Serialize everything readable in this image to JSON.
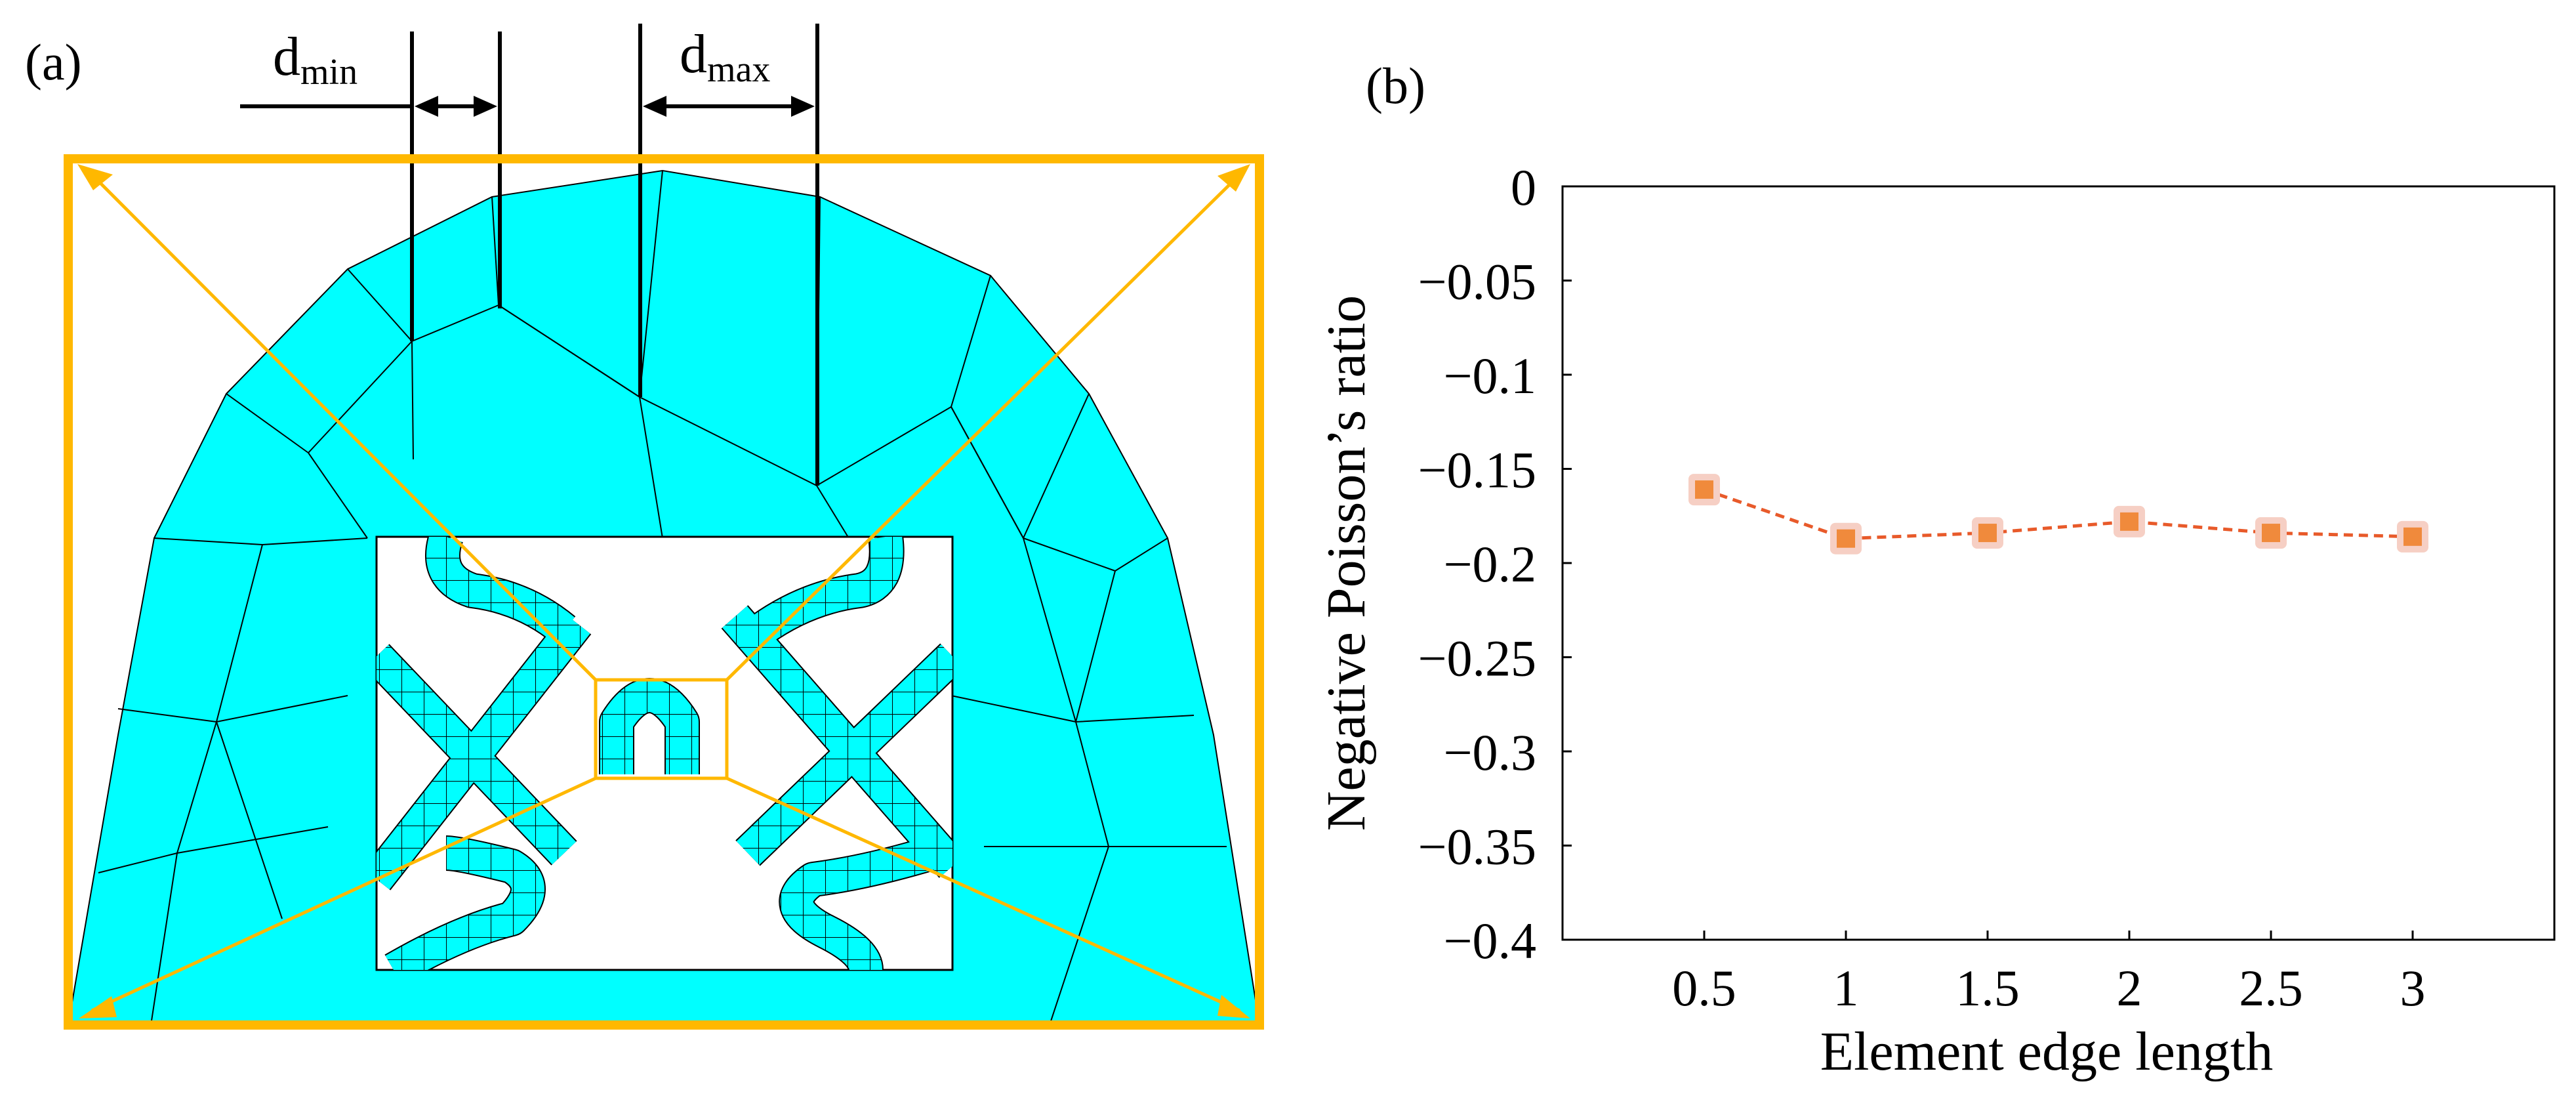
{
  "panel_a": {
    "label": "(a)",
    "d_min": {
      "base": "d",
      "sub": "min"
    },
    "d_max": {
      "base": "d",
      "sub": "max"
    },
    "colors": {
      "mesh_fill": "#00ffff",
      "frame": "#ffb800",
      "mesh_line": "#000000"
    }
  },
  "panel_b": {
    "label": "(b)"
  },
  "chart_data": {
    "type": "line",
    "title": "",
    "xlabel": "Element edge length",
    "ylabel": "Negative Poisson’s ratio",
    "x": [
      0.5,
      1,
      1.5,
      2,
      2.5,
      3
    ],
    "series": [
      {
        "name": "Negative Poisson's ratio",
        "values": [
          -0.161,
          -0.187,
          -0.184,
          -0.178,
          -0.184,
          -0.186
        ],
        "color": "#e85a2a",
        "marker_color": "#f08a3c"
      }
    ],
    "xlim": [
      0,
      3.5
    ],
    "ylim": [
      -0.4,
      0
    ],
    "xticks": [
      0.5,
      1,
      1.5,
      2,
      2.5,
      3
    ],
    "xtick_labels": [
      "0.5",
      "1",
      "1.5",
      "2",
      "2.5",
      "3"
    ],
    "yticks": [
      0,
      -0.05,
      -0.1,
      -0.15,
      -0.2,
      -0.25,
      -0.3,
      -0.35,
      -0.4
    ],
    "ytick_labels": [
      "0",
      "−0.05",
      "−0.1",
      "−0.15",
      "−0.2",
      "−0.25",
      "−0.3",
      "−0.35",
      "−0.4"
    ],
    "grid": false,
    "legend": "none"
  }
}
